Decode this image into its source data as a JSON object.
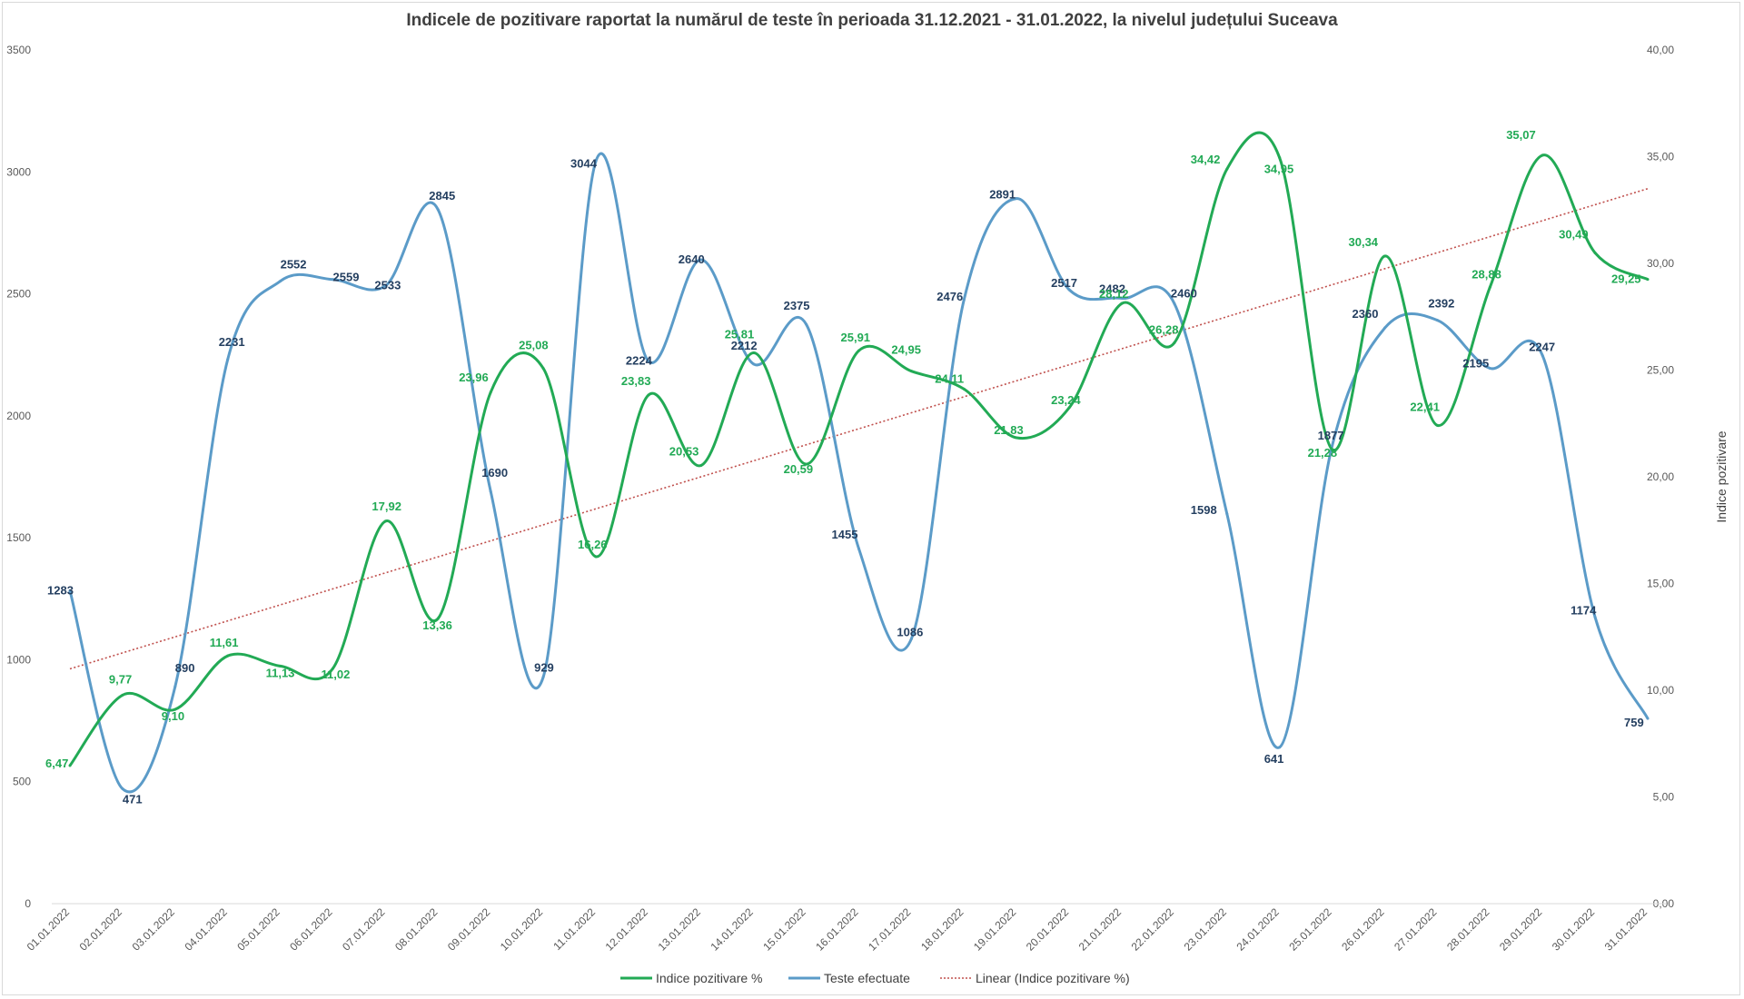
{
  "chart_data": {
    "type": "line",
    "title": "Indicele de pozitivare  raportat la numărul de teste în perioada  31.12.2021 - 31.01.2022, la nivelul județului  Suceava",
    "categories": [
      "01.01.2022",
      "02.01.2022",
      "03.01.2022",
      "04.01.2022",
      "05.01.2022",
      "06.01.2022",
      "07.01.2022",
      "08.01.2022",
      "09.01.2022",
      "10.01.2022",
      "11.01.2022",
      "12.01.2022",
      "13.01.2022",
      "14.01.2022",
      "15.01.2022",
      "16.01.2022",
      "17.01.2022",
      "18.01.2022",
      "19.01.2022",
      "20.01.2022",
      "21.01.2022",
      "22.01.2022",
      "23.01.2022",
      "24.01.2022",
      "25.01.2022",
      "26.01.2022",
      "27.01.2022",
      "28.01.2022",
      "29.01.2022",
      "30.01.2022",
      "31.01.2022"
    ],
    "y_left": {
      "min": 0,
      "max": 3500,
      "ticks": [
        "0",
        "500",
        "1000",
        "1500",
        "2000",
        "2500",
        "3000",
        "3500"
      ]
    },
    "y_right": {
      "min": 0,
      "max": 40,
      "label": "Indice pozitivare",
      "ticks": [
        "0,00",
        "5,00",
        "10,00",
        "15,00",
        "20,00",
        "25,00",
        "30,00",
        "35,00",
        "40,00"
      ]
    },
    "series": [
      {
        "name": "Indice pozitivare %",
        "axis": "right",
        "color": "#22aa55",
        "values": [
          6.47,
          9.77,
          9.1,
          11.61,
          11.13,
          11.02,
          17.92,
          13.36,
          23.96,
          25.08,
          16.26,
          23.83,
          20.53,
          25.81,
          20.59,
          25.91,
          24.95,
          24.11,
          21.83,
          23.24,
          28.12,
          26.28,
          34.42,
          34.95,
          21.28,
          30.34,
          22.41,
          28.88,
          35.07,
          30.49,
          29.25
        ],
        "labels": [
          "6,47",
          "9,77",
          "9,10",
          "11,61",
          "11,13",
          "11,02",
          "17,92",
          "13,36",
          "23,96",
          "25,08",
          "16,26",
          "23,83",
          "20,53",
          "25,81",
          "20,59",
          "25,91",
          "24,95",
          "24,11",
          "21,83",
          "23,24",
          "28,12",
          "26,28",
          "34,42",
          "34,95",
          "21,28",
          "30,34",
          "22,41",
          "28,88",
          "35,07",
          "30,49",
          "29,25"
        ]
      },
      {
        "name": "Teste efectuate",
        "axis": "left",
        "color": "#5b9bc8",
        "values": [
          1283,
          471,
          890,
          2231,
          2552,
          2559,
          2533,
          2845,
          1690,
          929,
          3044,
          2224,
          2640,
          2212,
          2375,
          1455,
          1086,
          2476,
          2891,
          2517,
          2482,
          2460,
          1598,
          641,
          1877,
          2360,
          2392,
          2195,
          2247,
          1174,
          759
        ],
        "labels": [
          "1283",
          "471",
          "890",
          "2231",
          "2552",
          "2559",
          "2533",
          "2845",
          "1690",
          "929",
          "3044",
          "2224",
          "2640",
          "2212",
          "2375",
          "1455",
          "1086",
          "2476",
          "2891",
          "2517",
          "2482",
          "2460",
          "1598",
          "641",
          "1877",
          "2360",
          "2392",
          "2195",
          "2247",
          "1174",
          "759"
        ]
      },
      {
        "name": "Linear (Indice pozitivare %)",
        "axis": "right",
        "color": "#c0504d",
        "trend": [
          11.0,
          33.5
        ]
      }
    ],
    "legend_position": "bottom",
    "grid": false
  }
}
